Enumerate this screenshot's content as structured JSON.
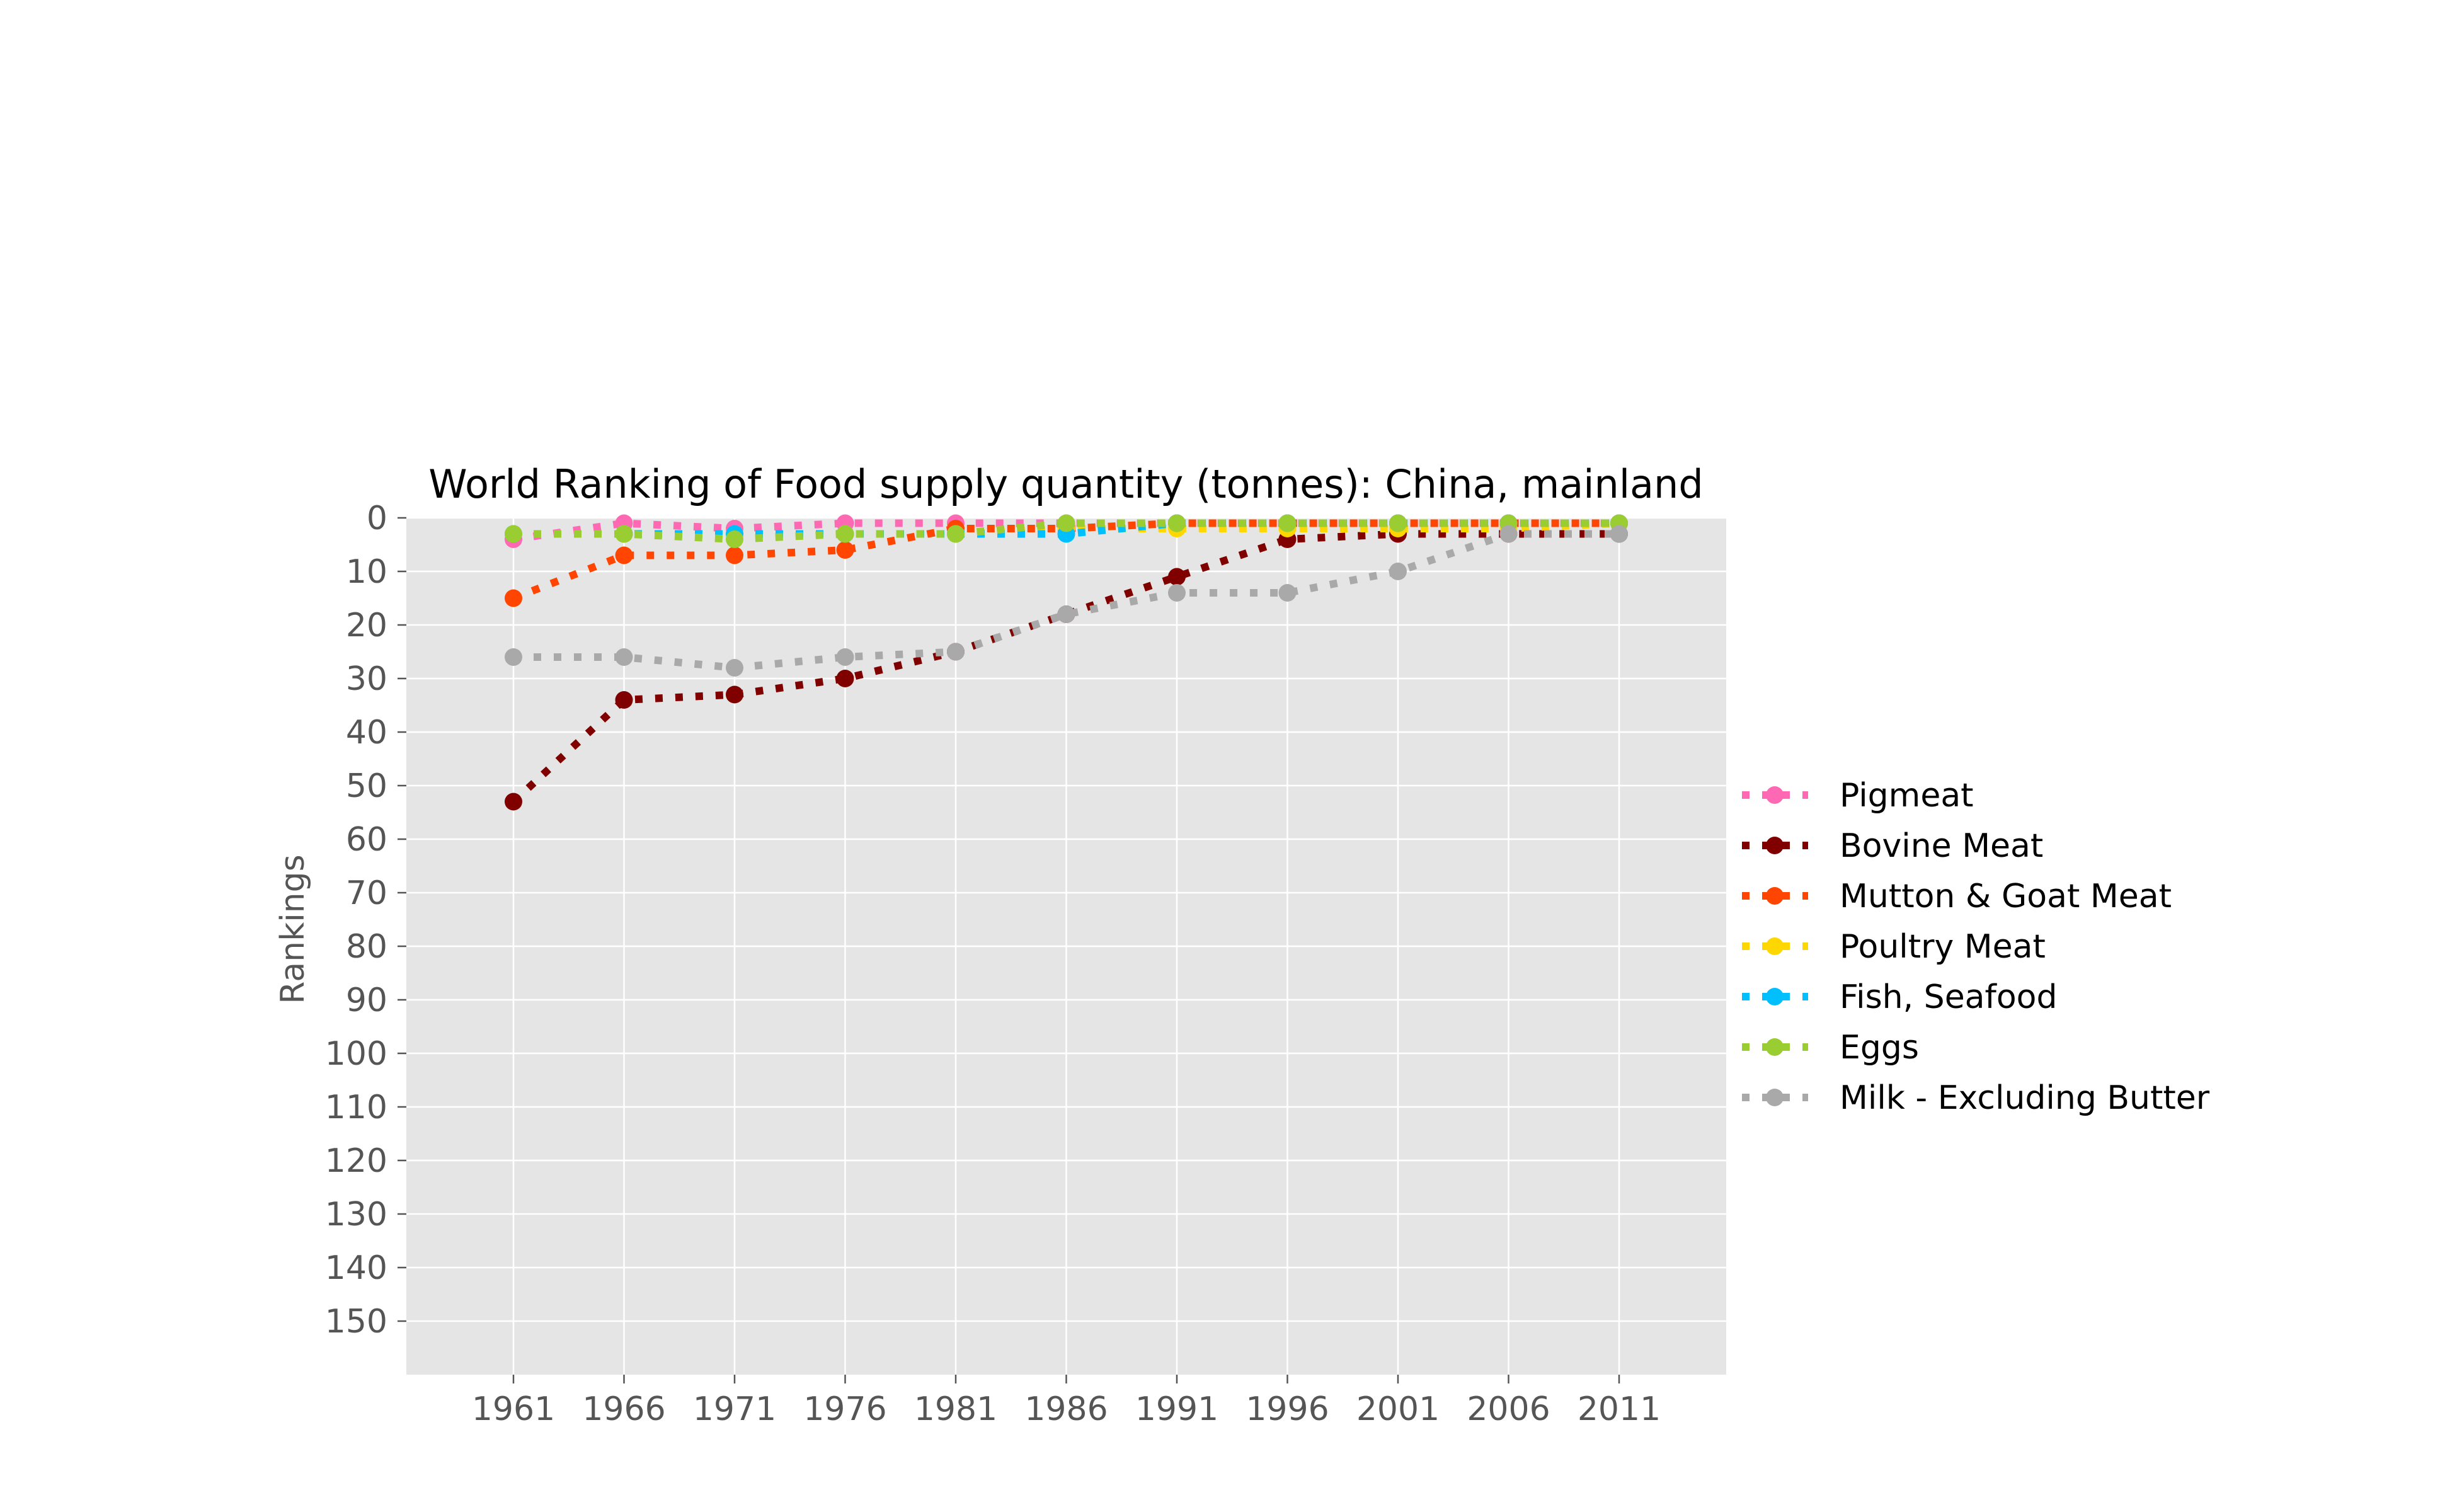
{
  "chart_data": {
    "type": "line",
    "title": "World Ranking of Food supply quantity (tonnes): China, mainland",
    "xlabel": "",
    "ylabel": "Rankings",
    "x": [
      1961,
      1966,
      1971,
      1976,
      1981,
      1986,
      1991,
      1996,
      2001,
      2006,
      2011
    ],
    "yticks": [
      0,
      10,
      20,
      30,
      40,
      50,
      60,
      70,
      80,
      90,
      100,
      110,
      120,
      130,
      140,
      150
    ],
    "ylim": [
      160,
      0
    ],
    "y_inverted": true,
    "grid": true,
    "legend_position": "right",
    "line_style": "dotted",
    "marker": "circle",
    "series": [
      {
        "name": "Pigmeat",
        "color": "#ff69b4",
        "values": [
          4,
          1,
          2,
          1,
          1,
          1,
          1,
          1,
          1,
          1,
          1
        ]
      },
      {
        "name": "Bovine Meat",
        "color": "#800000",
        "values": [
          53,
          34,
          33,
          30,
          25,
          18,
          11,
          4,
          3,
          3,
          3
        ]
      },
      {
        "name": "Mutton & Goat Meat",
        "color": "#ff4500",
        "values": [
          15,
          7,
          7,
          6,
          2,
          2,
          1,
          1,
          1,
          1,
          1
        ]
      },
      {
        "name": "Poultry Meat",
        "color": "#ffd700",
        "values": [
          3,
          3,
          3,
          3,
          3,
          2,
          2,
          2,
          2,
          2,
          1
        ]
      },
      {
        "name": "Fish, Seafood",
        "color": "#00bfff",
        "values": [
          3,
          3,
          3,
          3,
          3,
          3,
          1,
          1,
          1,
          1,
          1
        ]
      },
      {
        "name": "Eggs",
        "color": "#9acd32",
        "values": [
          3,
          3,
          4,
          3,
          3,
          1,
          1,
          1,
          1,
          1,
          1
        ]
      },
      {
        "name": "Milk - Excluding Butter",
        "color": "#a9a9a9",
        "values": [
          26,
          26,
          28,
          26,
          25,
          18,
          14,
          14,
          10,
          3,
          3
        ]
      }
    ]
  }
}
